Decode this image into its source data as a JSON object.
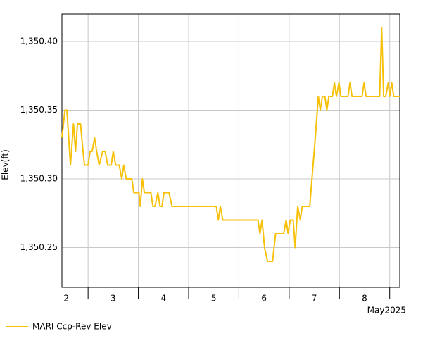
{
  "chart_data": {
    "type": "line",
    "y_label": "Elev(ft)",
    "x_annotation": "May2025",
    "xlim": [
      2.48,
      9.2
    ],
    "xticks": [
      {
        "value": 2.5,
        "label": "2"
      },
      {
        "value": 3.5,
        "label": "3"
      },
      {
        "value": 4.5,
        "label": "4"
      },
      {
        "value": 5.5,
        "label": "5"
      },
      {
        "value": 6.5,
        "label": "6"
      },
      {
        "value": 7.5,
        "label": "7"
      },
      {
        "value": 8.5,
        "label": "8"
      }
    ],
    "xgrid": [
      3,
      4,
      5,
      6,
      7,
      8,
      9
    ],
    "ylim": [
      1350.221,
      1350.42
    ],
    "yticks": [
      {
        "value": 1350.25,
        "label": "1,350.25"
      },
      {
        "value": 1350.3,
        "label": "1,350.30"
      },
      {
        "value": 1350.35,
        "label": "1,350.35"
      },
      {
        "value": 1350.4,
        "label": "1,350.40"
      }
    ],
    "grid": true,
    "legend": "bottom-left",
    "x": [
      2.48,
      2.54,
      2.58,
      2.65,
      2.71,
      2.75,
      2.79,
      2.85,
      2.9,
      2.93,
      3.0,
      3.04,
      3.08,
      3.13,
      3.17,
      3.22,
      3.29,
      3.34,
      3.39,
      3.46,
      3.5,
      3.55,
      3.62,
      3.67,
      3.71,
      3.76,
      3.87,
      3.91,
      4.01,
      4.04,
      4.08,
      4.12,
      4.25,
      4.29,
      4.33,
      4.39,
      4.43,
      4.47,
      4.51,
      4.61,
      4.67,
      5.55,
      5.59,
      5.63,
      5.68,
      6.38,
      6.42,
      6.46,
      6.51,
      6.57,
      6.67,
      6.73,
      6.89,
      6.94,
      6.98,
      7.02,
      7.08,
      7.12,
      7.17,
      7.22,
      7.26,
      7.41,
      7.52,
      7.58,
      7.62,
      7.66,
      7.71,
      7.75,
      7.79,
      7.86,
      7.9,
      7.94,
      7.99,
      8.03,
      8.17,
      8.21,
      8.25,
      8.45,
      8.49,
      8.53,
      8.8,
      8.84,
      8.88,
      8.92,
      8.97,
      9.0,
      9.04,
      9.08,
      9.2
    ],
    "series": [
      {
        "name": "MARI Ccp-Rev Elev",
        "color": "#f7c10a",
        "values": [
          1350.33,
          1350.35,
          1350.35,
          1350.31,
          1350.34,
          1350.32,
          1350.34,
          1350.34,
          1350.32,
          1350.31,
          1350.31,
          1350.32,
          1350.32,
          1350.33,
          1350.32,
          1350.31,
          1350.32,
          1350.32,
          1350.31,
          1350.31,
          1350.32,
          1350.31,
          1350.31,
          1350.3,
          1350.31,
          1350.3,
          1350.3,
          1350.29,
          1350.29,
          1350.28,
          1350.3,
          1350.29,
          1350.29,
          1350.28,
          1350.28,
          1350.29,
          1350.28,
          1350.28,
          1350.29,
          1350.29,
          1350.28,
          1350.28,
          1350.27,
          1350.28,
          1350.27,
          1350.27,
          1350.26,
          1350.27,
          1350.25,
          1350.24,
          1350.24,
          1350.26,
          1350.26,
          1350.27,
          1350.26,
          1350.27,
          1350.27,
          1350.25,
          1350.28,
          1350.27,
          1350.28,
          1350.28,
          1350.33,
          1350.36,
          1350.35,
          1350.36,
          1350.36,
          1350.35,
          1350.36,
          1350.36,
          1350.37,
          1350.36,
          1350.37,
          1350.36,
          1350.36,
          1350.37,
          1350.36,
          1350.36,
          1350.37,
          1350.36,
          1350.36,
          1350.41,
          1350.36,
          1350.36,
          1350.37,
          1350.36,
          1350.37,
          1350.36,
          1350.36
        ]
      }
    ]
  }
}
